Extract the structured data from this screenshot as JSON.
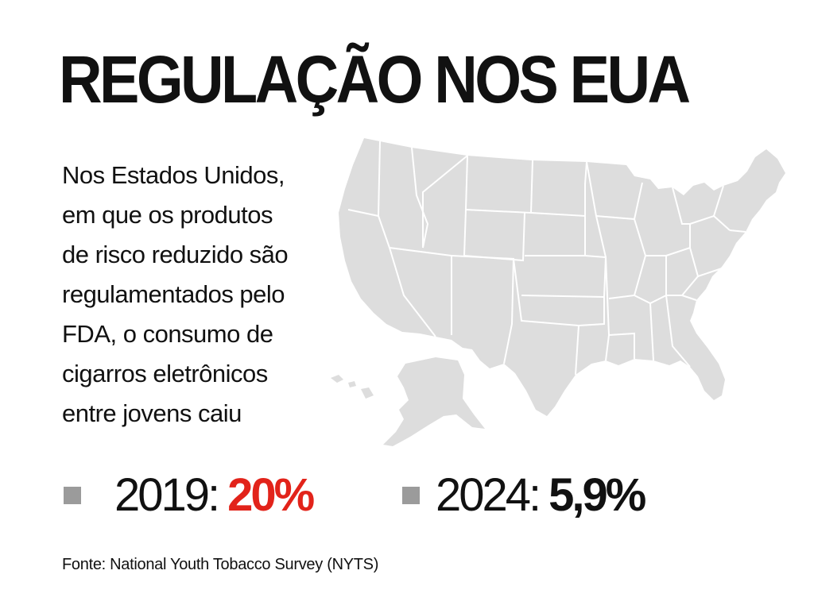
{
  "title": "REGULAÇÃO NOS EUA",
  "body_lines": [
    "Nos Estados Unidos,",
    "em que os produtos",
    "de risco reduzido são",
    "regulamentados pelo",
    "FDA, o consumo de",
    "cigarros eletrônicos",
    "entre jovens caiu"
  ],
  "stats": [
    {
      "label": "2019:",
      "value": "20%",
      "value_color": "#e2231a"
    },
    {
      "label": "2024:",
      "value": "5,9%",
      "value_color": "#111111"
    }
  ],
  "source": "Fonte: National Youth Tobacco Survey (NYTS)",
  "colors": {
    "map_fill": "#dddddd",
    "map_lines": "#ffffff",
    "bullet": "#9b9b9b",
    "text": "#111111"
  }
}
